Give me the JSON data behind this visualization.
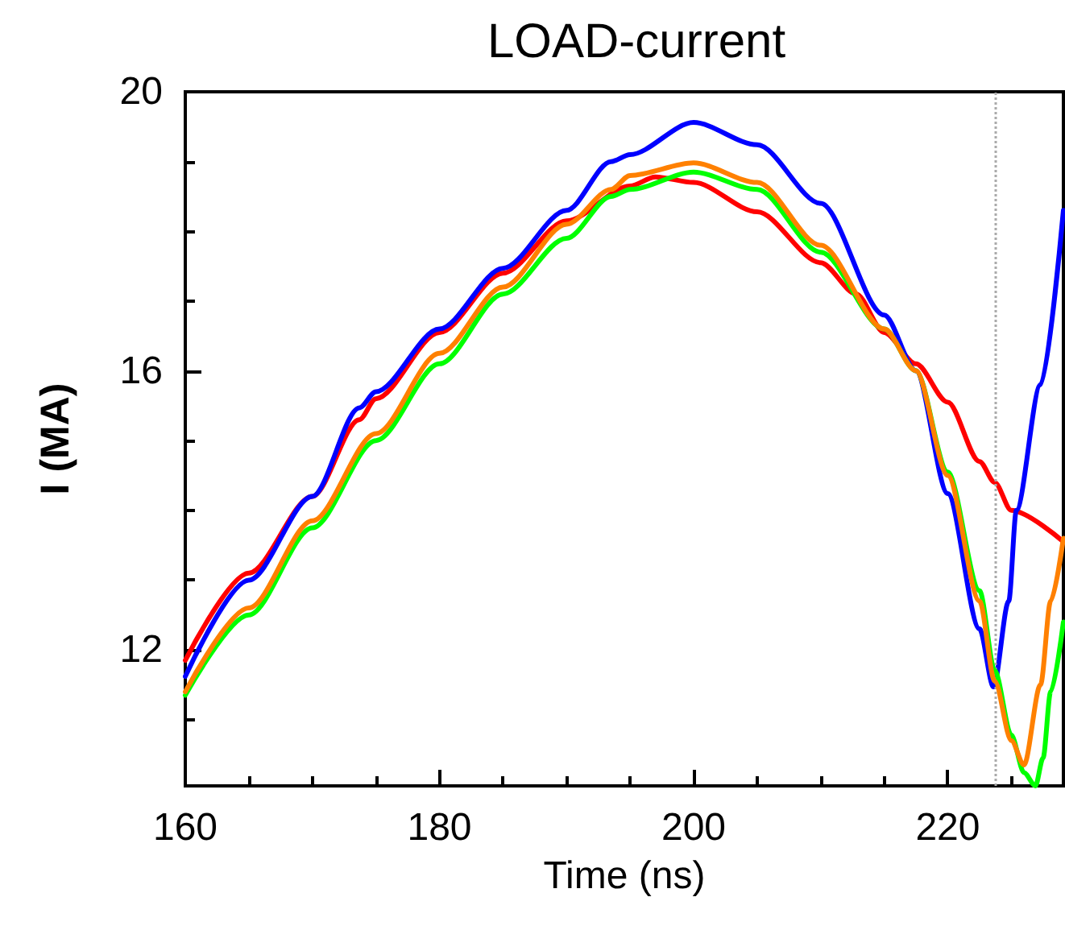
{
  "chart_data": {
    "type": "line",
    "title": "LOAD-current",
    "xlabel": "Time (ns)",
    "ylabel": "I (MA)",
    "xlim": [
      160,
      229.1
    ],
    "xticks": [
      160,
      180,
      200,
      220
    ],
    "ylim": [
      10.05,
      20
    ],
    "yticks": [
      12,
      16,
      20
    ],
    "grid": false,
    "marker": "none",
    "line_style": "solid",
    "ref_lines": [
      {
        "axis": "x",
        "value": 223.7,
        "line_style": "dotted",
        "color": "#aaaaaa"
      }
    ],
    "series": [
      {
        "color": "#ff0000",
        "x": [
          160,
          165,
          170,
          173.7,
          175,
          180,
          185,
          190,
          195,
          197,
          200,
          205,
          210,
          212.8,
          215,
          217.5,
          220,
          222.5,
          223.7,
          225,
          229.1
        ],
        "values": [
          11.85,
          13.1,
          14.2,
          15.3,
          15.6,
          16.55,
          17.4,
          18.15,
          18.65,
          18.78,
          18.7,
          18.28,
          17.55,
          17.1,
          16.55,
          16.1,
          15.55,
          14.7,
          14.4,
          14.0,
          13.55
        ]
      },
      {
        "color": "#0000ff",
        "x": [
          160,
          165,
          170,
          173.7,
          175,
          180,
          185,
          190,
          193.5,
          195,
          200,
          205,
          210,
          215,
          217.5,
          220,
          222.5,
          223.6,
          224.8,
          225.4,
          227.3,
          229.1
        ],
        "values": [
          11.62,
          13.0,
          14.2,
          15.47,
          15.7,
          16.6,
          17.47,
          18.3,
          19.0,
          19.1,
          19.56,
          19.24,
          18.4,
          16.8,
          16.0,
          14.24,
          12.3,
          11.47,
          12.7,
          14.0,
          15.8,
          18.3
        ]
      },
      {
        "color": "#00ff00",
        "x": [
          160,
          165,
          170,
          175,
          180,
          185,
          190,
          193.5,
          195,
          200,
          205,
          210,
          215,
          217.5,
          220,
          222.5,
          223.7,
          225,
          226,
          226.9,
          227.5,
          228.1,
          229.1
        ],
        "values": [
          11.35,
          12.5,
          13.75,
          15.0,
          16.1,
          17.1,
          17.9,
          18.5,
          18.6,
          18.85,
          18.6,
          17.7,
          16.6,
          16.0,
          14.55,
          12.85,
          11.7,
          10.78,
          10.24,
          10.05,
          10.45,
          11.4,
          12.4
        ]
      },
      {
        "color": "#ff8000",
        "x": [
          160,
          165,
          170,
          175,
          180,
          185,
          190,
          193.5,
          195,
          200,
          205,
          210,
          215,
          217.5,
          220,
          222.5,
          223.7,
          225,
          226,
          227.3,
          228.1,
          229.1
        ],
        "values": [
          11.4,
          12.6,
          13.85,
          15.1,
          16.25,
          17.2,
          18.1,
          18.6,
          18.8,
          18.98,
          18.7,
          17.8,
          16.6,
          16.0,
          14.5,
          12.7,
          11.55,
          10.7,
          10.35,
          11.5,
          12.7,
          13.6
        ]
      }
    ]
  }
}
